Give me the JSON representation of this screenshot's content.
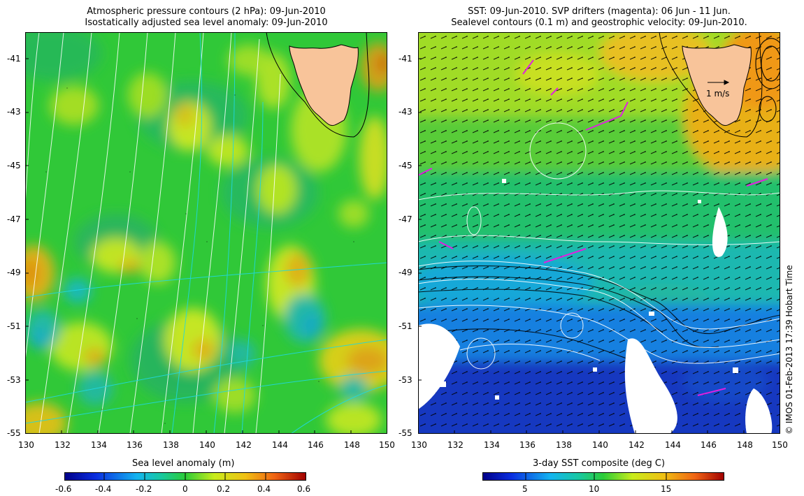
{
  "left_panel": {
    "title_line1": "Atmospheric pressure contours (2 hPa): 09-Jun-2010",
    "title_line2": "Isostatically adjusted sea level anomaly: 09-Jun-2010",
    "y_ticks": [
      "-41",
      "-43",
      "-45",
      "-47",
      "-49",
      "-51",
      "-53",
      "-55"
    ],
    "x_ticks": [
      "130",
      "132",
      "134",
      "136",
      "138",
      "140",
      "142",
      "144",
      "146",
      "148",
      "150"
    ],
    "colorbar_label": "Sea level anomaly (m)",
    "colorbar_ticks": [
      "-0.6",
      "-0.4",
      "-0.2",
      "0",
      "0.2",
      "0.4",
      "0.6"
    ],
    "colorbar_range": [
      -0.6,
      0.6
    ]
  },
  "right_panel": {
    "title_line1": "SST: 09-Jun-2010. SVP drifters (magenta): 06 Jun - 11 Jun.",
    "title_line2": "Sealevel contours (0.1 m) and geostrophic velocity: 09-Jun-2010.",
    "y_ticks": [
      "-41",
      "-43",
      "-45",
      "-47",
      "-49",
      "-51",
      "-53",
      "-55"
    ],
    "x_ticks": [
      "130",
      "132",
      "134",
      "136",
      "138",
      "140",
      "142",
      "144",
      "146",
      "148",
      "150"
    ],
    "scale_label": "1 m/s",
    "colorbar_label": "3-day SST composite (deg C)",
    "colorbar_ticks": [
      "5",
      "10",
      "15"
    ]
  },
  "credit": "© IMOS 01-Feb-2013 17:39 Hobart Time",
  "colors": {
    "land": "#f8c49a",
    "green": "#2fcf3a",
    "yellow": "#d8ef1e",
    "cyan": "#16b8c8",
    "blue": "#1f40c8",
    "orange": "#f0a010",
    "drifter": "#e020e0"
  }
}
